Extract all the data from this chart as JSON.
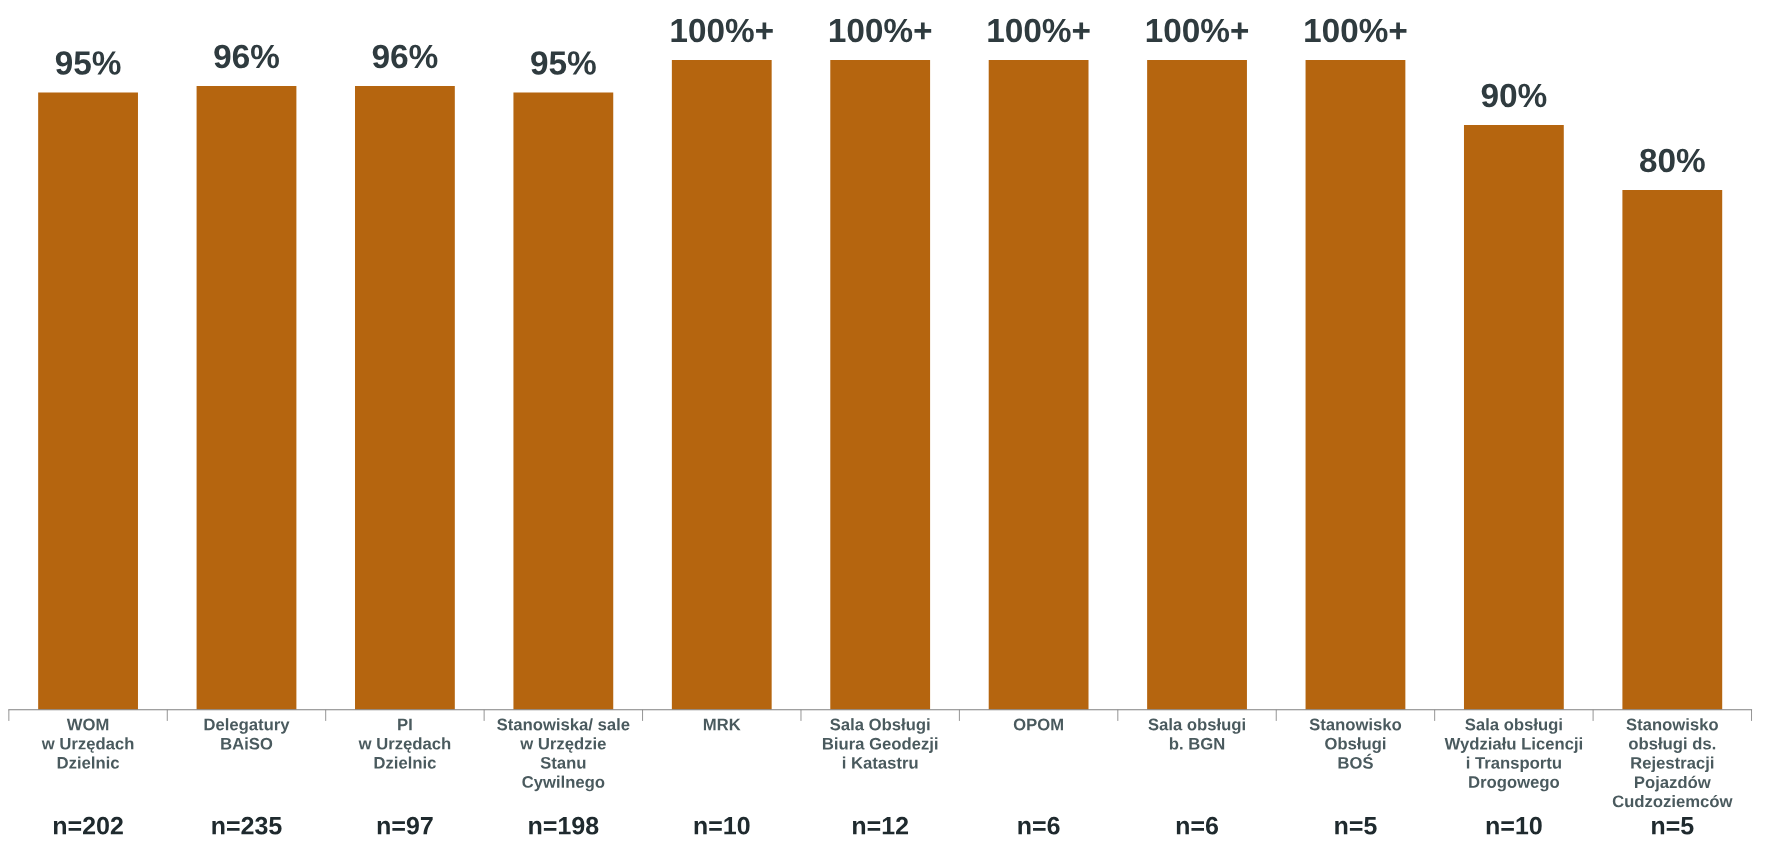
{
  "chart_data": {
    "type": "bar",
    "categories": [
      "WOM\nw Urzędach\nDzielnic",
      "Delegatury\nBAiSO",
      "PI\nw Urzędach\nDzielnic",
      "Stanowiska/ sale\nw Urzędzie\nStanu\nCywilnego",
      "MRK",
      "Sala Obsługi\nBiura Geodezji\ni Katastru",
      "OPOM",
      "Sala obsługi\nb. BGN",
      "Stanowisko\nObsługi\nBOŚ",
      "Sala obsługi\nWydziału Licencji\ni Transportu\nDrogowego",
      "Stanowisko\nobsługi ds.\nRejestracji\nPojazdów\nCudzoziemców"
    ],
    "values": [
      95,
      96,
      96,
      95,
      100,
      100,
      100,
      100,
      100,
      90,
      80
    ],
    "value_labels": [
      "95%",
      "96%",
      "96%",
      "95%",
      "100%+",
      "100%+",
      "100%+",
      "100%+",
      "100%+",
      "90%",
      "80%"
    ],
    "color": "#b5650f",
    "annotations": [
      "n=202",
      "n=235",
      "n=97",
      "n=198",
      "n=10",
      "n=12",
      "n=6",
      "n=6",
      "n=5",
      "n=10",
      "n=5"
    ],
    "grid": false,
    "legend": false
  }
}
